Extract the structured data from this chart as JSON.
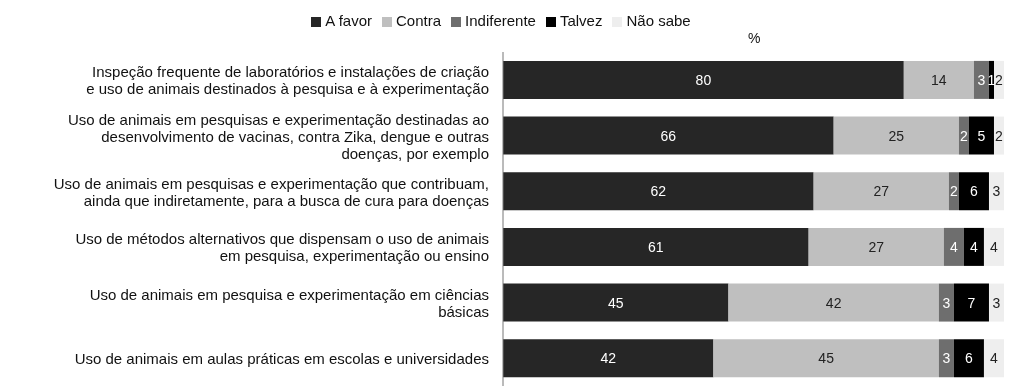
{
  "chart_data": {
    "type": "bar",
    "orientation": "horizontal",
    "stacked": true,
    "xlabel": "%",
    "legend": "top",
    "data_labels": true,
    "categories": [
      "Inspeção frequente de laboratórios e instalações de criação e uso de animais destinados à pesquisa e à experimentação",
      "Uso de animais em pesquisas e experimentação destinadas ao desenvolvimento de vacinas, contra Zika, dengue e outras doenças, por exemplo",
      "Uso de animais em pesquisas e experimentação que contribuam, ainda que indiretamente, para a busca de cura para doenças",
      "Uso de métodos alternativos que dispensam o uso de animais em pesquisa, experimentação ou ensino",
      "Uso de animais em pesquisa e experimentação em ciências básicas",
      "Uso de animais em aulas práticas em escolas e universidades"
    ],
    "series": [
      {
        "name": "A favor",
        "color": "#262626",
        "values": [
          80,
          66,
          62,
          61,
          45,
          42
        ]
      },
      {
        "name": "Contra",
        "color": "#bfbfbf",
        "values": [
          14,
          25,
          27,
          27,
          42,
          45
        ]
      },
      {
        "name": "Indiferente",
        "color": "#6e6e6e",
        "values": [
          3,
          2,
          2,
          4,
          3,
          3
        ]
      },
      {
        "name": "Talvez",
        "color": "#000000",
        "values": [
          1,
          5,
          6,
          4,
          7,
          6
        ]
      },
      {
        "name": "Não sabe",
        "color": "#eeeeee",
        "values": [
          2,
          2,
          3,
          4,
          3,
          4
        ]
      }
    ]
  }
}
